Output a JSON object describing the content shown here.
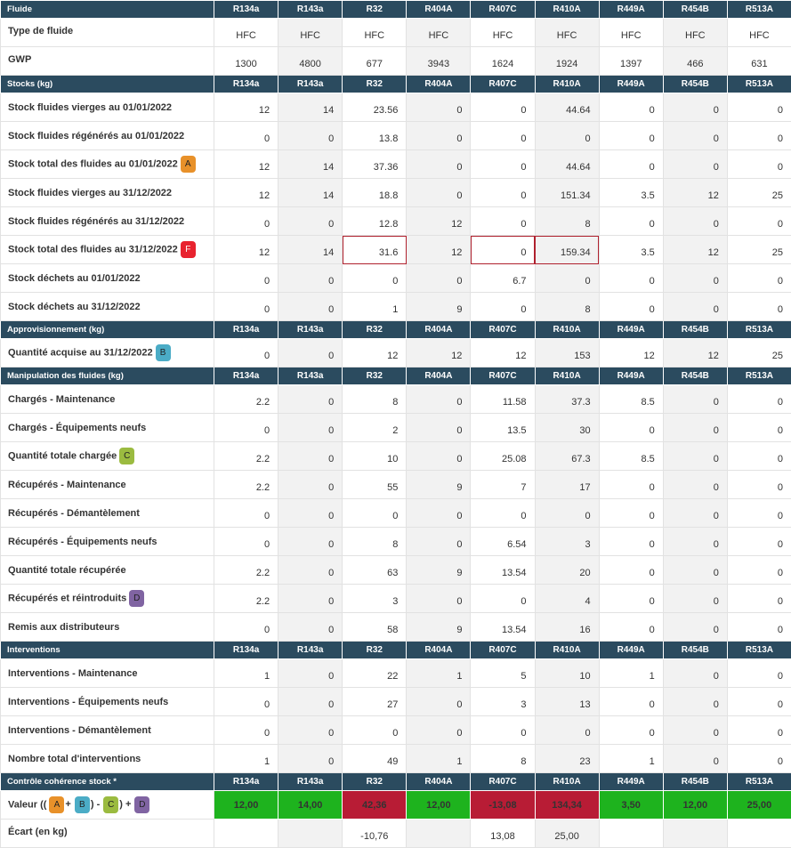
{
  "colors": {
    "header_bg": "#2b4b5f",
    "ok_green": "#1eb31e",
    "error_red": "#b81c35"
  },
  "fluids": [
    "R134a",
    "R143a",
    "R32",
    "R404A",
    "R407C",
    "R410A",
    "R449A",
    "R454B",
    "R513A"
  ],
  "sections": {
    "fluide": "Fluide",
    "stocks": "Stocks (kg)",
    "appro": "Approvisionnement (kg)",
    "manip": "Manipulation des fluides (kg)",
    "interv": "Interventions",
    "controle": "Contrôle cohérence stock *"
  },
  "fluid_info": {
    "type_label": "Type de fluide",
    "types": [
      "HFC",
      "HFC",
      "HFC",
      "HFC",
      "HFC",
      "HFC",
      "HFC",
      "HFC",
      "HFC"
    ],
    "gwp_label": "GWP",
    "gwp": [
      "1300",
      "4800",
      "677",
      "3943",
      "1624",
      "1924",
      "1397",
      "466",
      "631"
    ]
  },
  "stocks": [
    {
      "label": "Stock fluides vierges au 01/01/2022",
      "values": [
        "12",
        "14",
        "23.56",
        "0",
        "0",
        "44.64",
        "0",
        "0",
        "0"
      ]
    },
    {
      "label": "Stock fluides régénérés au 01/01/2022",
      "values": [
        "0",
        "0",
        "13.8",
        "0",
        "0",
        "0",
        "0",
        "0",
        "0"
      ]
    },
    {
      "label": "Stock total des fluides au 01/01/2022",
      "badge": "A",
      "values": [
        "12",
        "14",
        "37.36",
        "0",
        "0",
        "44.64",
        "0",
        "0",
        "0"
      ]
    },
    {
      "label": "Stock fluides vierges au 31/12/2022",
      "values": [
        "12",
        "14",
        "18.8",
        "0",
        "0",
        "151.34",
        "3.5",
        "12",
        "25"
      ]
    },
    {
      "label": "Stock fluides régénérés au 31/12/2022",
      "values": [
        "0",
        "0",
        "12.8",
        "12",
        "0",
        "8",
        "0",
        "0",
        "0"
      ]
    },
    {
      "label": "Stock total des fluides au 31/12/2022",
      "badge": "F",
      "values": [
        "12",
        "14",
        "31.6",
        "12",
        "0",
        "159.34",
        "3.5",
        "12",
        "25"
      ]
    },
    {
      "label": "Stock déchets au 01/01/2022",
      "values": [
        "0",
        "0",
        "0",
        "0",
        "6.7",
        "0",
        "0",
        "0",
        "0"
      ]
    },
    {
      "label": "Stock déchets au 31/12/2022",
      "values": [
        "0",
        "0",
        "1",
        "9",
        "0",
        "8",
        "0",
        "0",
        "0"
      ]
    }
  ],
  "appro": [
    {
      "label": "Quantité acquise au 31/12/2022",
      "badge": "B",
      "values": [
        "0",
        "0",
        "12",
        "12",
        "12",
        "153",
        "12",
        "12",
        "25"
      ]
    }
  ],
  "manip": [
    {
      "label": "Chargés - Maintenance",
      "values": [
        "2.2",
        "0",
        "8",
        "0",
        "11.58",
        "37.3",
        "8.5",
        "0",
        "0"
      ]
    },
    {
      "label": "Chargés - Équipements neufs",
      "values": [
        "0",
        "0",
        "2",
        "0",
        "13.5",
        "30",
        "0",
        "0",
        "0"
      ]
    },
    {
      "label": "Quantité totale chargée",
      "badge": "C",
      "values": [
        "2.2",
        "0",
        "10",
        "0",
        "25.08",
        "67.3",
        "8.5",
        "0",
        "0"
      ]
    },
    {
      "label": "Récupérés - Maintenance",
      "values": [
        "2.2",
        "0",
        "55",
        "9",
        "7",
        "17",
        "0",
        "0",
        "0"
      ]
    },
    {
      "label": "Récupérés - Démantèlement",
      "values": [
        "0",
        "0",
        "0",
        "0",
        "0",
        "0",
        "0",
        "0",
        "0"
      ]
    },
    {
      "label": "Récupérés - Équipements neufs",
      "values": [
        "0",
        "0",
        "8",
        "0",
        "6.54",
        "3",
        "0",
        "0",
        "0"
      ]
    },
    {
      "label": "Quantité totale récupérée",
      "values": [
        "2.2",
        "0",
        "63",
        "9",
        "13.54",
        "20",
        "0",
        "0",
        "0"
      ]
    },
    {
      "label": "Récupérés et réintroduits",
      "badge": "D",
      "values": [
        "2.2",
        "0",
        "3",
        "0",
        "0",
        "4",
        "0",
        "0",
        "0"
      ]
    },
    {
      "label": "Remis aux distributeurs",
      "values": [
        "0",
        "0",
        "58",
        "9",
        "13.54",
        "16",
        "0",
        "0",
        "0"
      ]
    }
  ],
  "interv": [
    {
      "label": "Interventions - Maintenance",
      "values": [
        "1",
        "0",
        "22",
        "1",
        "5",
        "10",
        "1",
        "0",
        "0"
      ]
    },
    {
      "label": "Interventions - Équipements neufs",
      "values": [
        "0",
        "0",
        "27",
        "0",
        "3",
        "13",
        "0",
        "0",
        "0"
      ]
    },
    {
      "label": "Interventions - Démantèlement",
      "values": [
        "0",
        "0",
        "0",
        "0",
        "0",
        "0",
        "0",
        "0",
        "0"
      ]
    },
    {
      "label": "Nombre total d'interventions",
      "values": [
        "1",
        "0",
        "49",
        "1",
        "8",
        "23",
        "1",
        "0",
        "0"
      ]
    }
  ],
  "controle": {
    "valeur_prefix": "Valeur ((",
    "op1": "+",
    "op2": ") -",
    "op3": ") +",
    "values": [
      "12,00",
      "14,00",
      "42,36",
      "12,00",
      "-13,08",
      "134,34",
      "3,50",
      "12,00",
      "25,00"
    ],
    "status": [
      "ok",
      "ok",
      "error",
      "ok",
      "error",
      "error",
      "ok",
      "ok",
      "ok"
    ],
    "ecart_label": "Écart (en kg)",
    "ecart": [
      "",
      "",
      "-10,76",
      "",
      "13,08",
      "25,00",
      "",
      "",
      ""
    ]
  },
  "badges": {
    "A": "A",
    "B": "B",
    "C": "C",
    "D": "D",
    "F": "F"
  }
}
